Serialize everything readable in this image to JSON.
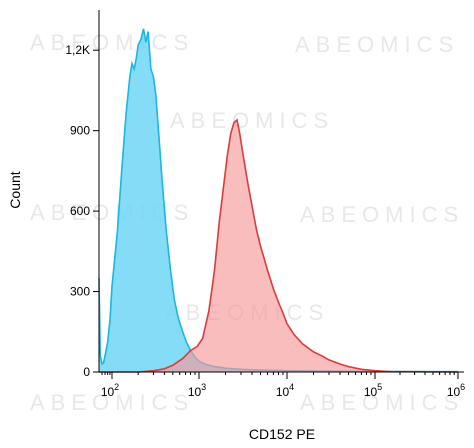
{
  "chart_data": {
    "type": "area",
    "xlabel": "CD152 PE",
    "ylabel": "Count",
    "xscale": "biexponential-log",
    "ylim": [
      0,
      1350
    ],
    "grid": false,
    "y_ticks": [
      {
        "value": 0,
        "label": "0"
      },
      {
        "value": 300,
        "label": "300"
      },
      {
        "value": 600,
        "label": "600"
      },
      {
        "value": 900,
        "label": "900"
      },
      {
        "value": 1200,
        "label": "1,2K"
      }
    ],
    "x_ticks": [
      {
        "value": 100,
        "base": "10",
        "exp": "2"
      },
      {
        "value": 1000,
        "base": "10",
        "exp": "3"
      },
      {
        "value": 10000,
        "base": "10",
        "exp": "4"
      },
      {
        "value": 100000,
        "base": "10",
        "exp": "5"
      },
      {
        "value": 1000000,
        "base": "10",
        "exp": "6"
      }
    ],
    "series": [
      {
        "color": "#1ab6e6",
        "fill": "#6fd6f5",
        "points": [
          [
            50,
            350
          ],
          [
            55,
            60
          ],
          [
            60,
            30
          ],
          [
            65,
            35
          ],
          [
            70,
            60
          ],
          [
            80,
            110
          ],
          [
            90,
            190
          ],
          [
            100,
            320
          ],
          [
            115,
            520
          ],
          [
            130,
            760
          ],
          [
            145,
            960
          ],
          [
            160,
            1100
          ],
          [
            170,
            1150
          ],
          [
            180,
            1130
          ],
          [
            190,
            1170
          ],
          [
            200,
            1220
          ],
          [
            215,
            1240
          ],
          [
            230,
            1280
          ],
          [
            245,
            1230
          ],
          [
            260,
            1270
          ],
          [
            280,
            1130
          ],
          [
            300,
            1100
          ],
          [
            320,
            1030
          ],
          [
            350,
            860
          ],
          [
            380,
            700
          ],
          [
            420,
            530
          ],
          [
            470,
            380
          ],
          [
            520,
            270
          ],
          [
            580,
            200
          ],
          [
            650,
            150
          ],
          [
            720,
            110
          ],
          [
            800,
            80
          ],
          [
            900,
            55
          ],
          [
            1000,
            40
          ],
          [
            1200,
            28
          ],
          [
            1500,
            20
          ],
          [
            2000,
            14
          ],
          [
            3000,
            10
          ],
          [
            5000,
            7
          ],
          [
            10000,
            5
          ],
          [
            30000,
            3
          ],
          [
            100000,
            2
          ],
          [
            1000000,
            1
          ]
        ]
      },
      {
        "color": "#e03a3a",
        "fill": "#f69a9a",
        "points": [
          [
            50,
            0
          ],
          [
            200,
            0
          ],
          [
            300,
            5
          ],
          [
            400,
            12
          ],
          [
            500,
            25
          ],
          [
            650,
            50
          ],
          [
            800,
            80
          ],
          [
            950,
            95
          ],
          [
            1100,
            125
          ],
          [
            1300,
            230
          ],
          [
            1500,
            380
          ],
          [
            1700,
            560
          ],
          [
            1900,
            690
          ],
          [
            2100,
            810
          ],
          [
            2300,
            890
          ],
          [
            2500,
            930
          ],
          [
            2700,
            940
          ],
          [
            2900,
            890
          ],
          [
            3200,
            800
          ],
          [
            3600,
            700
          ],
          [
            4000,
            620
          ],
          [
            4500,
            530
          ],
          [
            5000,
            470
          ],
          [
            6000,
            380
          ],
          [
            7000,
            310
          ],
          [
            8000,
            260
          ],
          [
            9000,
            220
          ],
          [
            10000,
            180
          ],
          [
            12000,
            140
          ],
          [
            15000,
            105
          ],
          [
            20000,
            75
          ],
          [
            25000,
            60
          ],
          [
            30000,
            45
          ],
          [
            40000,
            30
          ],
          [
            50000,
            20
          ],
          [
            70000,
            10
          ],
          [
            100000,
            5
          ],
          [
            150000,
            2
          ],
          [
            300000,
            1
          ],
          [
            1000000,
            0
          ]
        ]
      }
    ],
    "watermark": "ABEOMICS"
  }
}
